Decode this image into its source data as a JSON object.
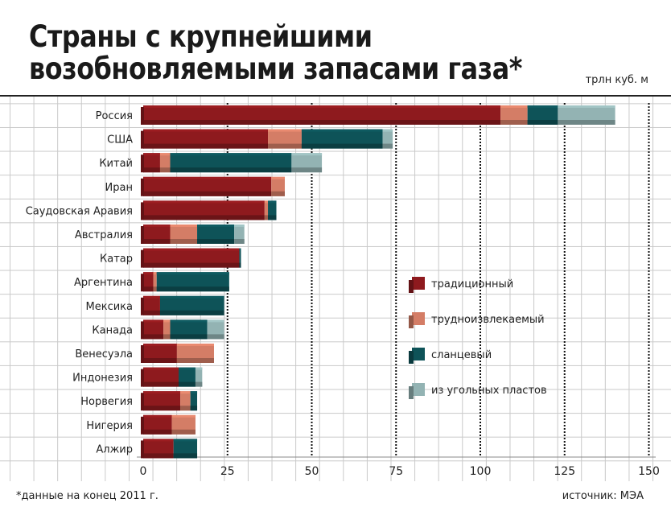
{
  "title": "Страны с крупнейшими возобновляемыми запасами газа*",
  "unit": "трлн куб. м",
  "footnote": "*данные на конец 2011 г.",
  "source": "источник: МЭА",
  "chart_data": {
    "type": "bar",
    "orientation": "horizontal",
    "stacked": true,
    "categories": [
      "Россия",
      "США",
      "Китай",
      "Иран",
      "Саудовская Аравия",
      "Австралия",
      "Катар",
      "Аргентина",
      "Мексика",
      "Канада",
      "Венесуэла",
      "Индонезия",
      "Норвегия",
      "Нигерия",
      "Алжир"
    ],
    "series": [
      {
        "name": "традиционный",
        "color": "#8e1a1e",
        "values": [
          106,
          37,
          5,
          38,
          36,
          8,
          28.5,
          3,
          5,
          6,
          10,
          10.5,
          11,
          8.5,
          9
        ]
      },
      {
        "name": "трудноизвлекаемый",
        "color": "#d47d66",
        "values": [
          8,
          10,
          3,
          4,
          1,
          8,
          0,
          1,
          0,
          2,
          11,
          0,
          3,
          7,
          0
        ]
      },
      {
        "name": "сланцевый",
        "color": "#0e5358",
        "values": [
          9,
          24,
          36,
          0,
          2.5,
          11,
          0.5,
          21.5,
          19,
          11,
          0,
          5,
          2,
          0,
          7
        ]
      },
      {
        "name": "из угольных пластов",
        "color": "#93b3b3",
        "values": [
          17,
          3,
          9,
          0,
          0,
          3,
          0,
          0,
          0,
          5,
          0,
          2,
          0,
          0,
          0
        ]
      }
    ],
    "xticks": [
      0,
      25,
      50,
      75,
      100,
      125,
      150
    ],
    "xlim": [
      0,
      150
    ],
    "grid": true,
    "legend": "right-middle"
  }
}
